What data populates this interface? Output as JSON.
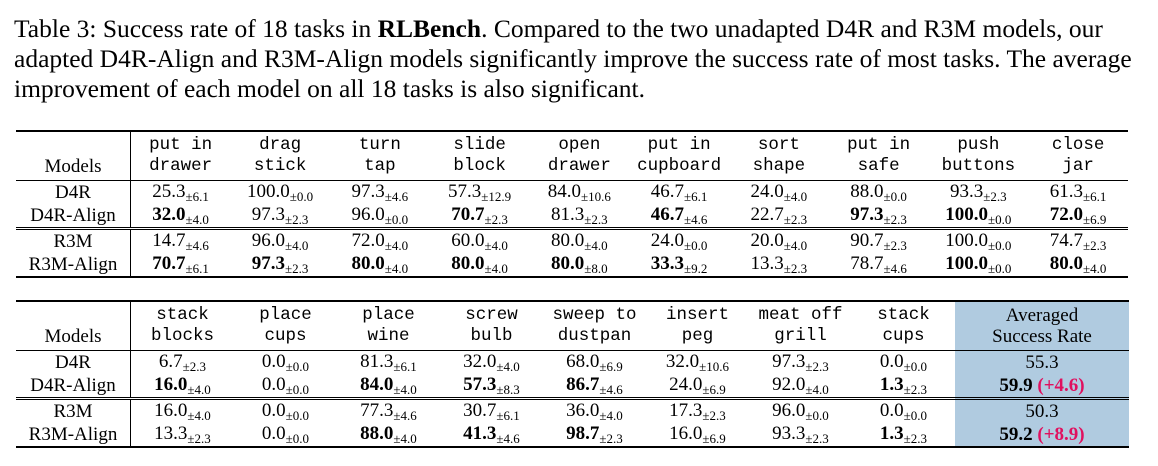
{
  "caption": {
    "prefix": "Table 3:  Success rate of 18 tasks in ",
    "bold": "RLBench",
    "rest": ".  Compared to the two unadapted D4R and R3M models, our adapted D4R-Align and R3M-Align models significantly improve the success rate of most tasks. The average improvement of each model on all 18 tasks is also significant."
  },
  "table1": {
    "models_label": "Models",
    "headers": [
      [
        "put in",
        "drawer"
      ],
      [
        "drag",
        "stick"
      ],
      [
        "turn",
        "tap"
      ],
      [
        "slide",
        "block"
      ],
      [
        "open",
        "drawer"
      ],
      [
        "put in",
        "cupboard"
      ],
      [
        "sort",
        "shape"
      ],
      [
        "put in",
        "safe"
      ],
      [
        "push",
        "buttons"
      ],
      [
        "close",
        "jar"
      ]
    ],
    "groups": [
      {
        "rows": [
          {
            "model": "D4R",
            "cells": [
              {
                "v": "25.3",
                "sd": "±6.1"
              },
              {
                "v": "100.0",
                "sd": "±0.0"
              },
              {
                "v": "97.3",
                "sd": "±4.6"
              },
              {
                "v": "57.3",
                "sd": "±12.9"
              },
              {
                "v": "84.0",
                "sd": "±10.6"
              },
              {
                "v": "46.7",
                "sd": "±6.1"
              },
              {
                "v": "24.0",
                "sd": "±4.0"
              },
              {
                "v": "88.0",
                "sd": "±0.0"
              },
              {
                "v": "93.3",
                "sd": "±2.3"
              },
              {
                "v": "61.3",
                "sd": "±6.1"
              }
            ]
          },
          {
            "model": "D4R-Align",
            "cells": [
              {
                "v": "32.0",
                "sd": "±4.0",
                "bold": true
              },
              {
                "v": "97.3",
                "sd": "±2.3"
              },
              {
                "v": "96.0",
                "sd": "±0.0"
              },
              {
                "v": "70.7",
                "sd": "±2.3",
                "bold": true
              },
              {
                "v": "81.3",
                "sd": "±2.3"
              },
              {
                "v": "46.7",
                "sd": "±4.6",
                "bold": true
              },
              {
                "v": "22.7",
                "sd": "±2.3"
              },
              {
                "v": "97.3",
                "sd": "±2.3",
                "bold": true
              },
              {
                "v": "100.0",
                "sd": "±0.0",
                "bold": true
              },
              {
                "v": "72.0",
                "sd": "±6.9",
                "bold": true
              }
            ]
          }
        ]
      },
      {
        "rows": [
          {
            "model": "R3M",
            "cells": [
              {
                "v": "14.7",
                "sd": "±4.6"
              },
              {
                "v": "96.0",
                "sd": "±4.0"
              },
              {
                "v": "72.0",
                "sd": "±4.0"
              },
              {
                "v": "60.0",
                "sd": "±4.0"
              },
              {
                "v": "80.0",
                "sd": "±4.0"
              },
              {
                "v": "24.0",
                "sd": "±0.0"
              },
              {
                "v": "20.0",
                "sd": "±4.0"
              },
              {
                "v": "90.7",
                "sd": "±2.3"
              },
              {
                "v": "100.0",
                "sd": "±0.0"
              },
              {
                "v": "74.7",
                "sd": "±2.3"
              }
            ]
          },
          {
            "model": "R3M-Align",
            "cells": [
              {
                "v": "70.7",
                "sd": "±6.1",
                "bold": true
              },
              {
                "v": "97.3",
                "sd": "±2.3",
                "bold": true
              },
              {
                "v": "80.0",
                "sd": "±4.0",
                "bold": true
              },
              {
                "v": "80.0",
                "sd": "±4.0",
                "bold": true
              },
              {
                "v": "80.0",
                "sd": "±8.0",
                "bold": true
              },
              {
                "v": "33.3",
                "sd": "±9.2",
                "bold": true
              },
              {
                "v": "13.3",
                "sd": "±2.3"
              },
              {
                "v": "78.7",
                "sd": "±4.6"
              },
              {
                "v": "100.0",
                "sd": "±0.0",
                "bold": true
              },
              {
                "v": "80.0",
                "sd": "±4.0",
                "bold": true
              }
            ]
          }
        ]
      }
    ]
  },
  "table2": {
    "models_label": "Models",
    "headers": [
      [
        "stack",
        "blocks"
      ],
      [
        "place",
        "cups"
      ],
      [
        "place",
        "wine"
      ],
      [
        "screw",
        "bulb"
      ],
      [
        "sweep to",
        "dustpan"
      ],
      [
        "insert",
        "peg"
      ],
      [
        "meat off",
        "grill"
      ],
      [
        "stack",
        "cups"
      ]
    ],
    "avg_header": [
      "Averaged",
      "Success Rate"
    ],
    "highlight_color": "#b0cbe0",
    "improvement_color": "#e0105e",
    "groups": [
      {
        "rows": [
          {
            "model": "D4R",
            "cells": [
              {
                "v": "6.7",
                "sd": "±2.3"
              },
              {
                "v": "0.0",
                "sd": "±0.0"
              },
              {
                "v": "81.3",
                "sd": "±6.1"
              },
              {
                "v": "32.0",
                "sd": "±4.0"
              },
              {
                "v": "68.0",
                "sd": "±6.9"
              },
              {
                "v": "32.0",
                "sd": "±10.6"
              },
              {
                "v": "97.3",
                "sd": "±2.3"
              },
              {
                "v": "0.0",
                "sd": "±0.0"
              }
            ],
            "avg": {
              "v": "55.3",
              "imp": ""
            }
          },
          {
            "model": "D4R-Align",
            "cells": [
              {
                "v": "16.0",
                "sd": "±4.0",
                "bold": true
              },
              {
                "v": "0.0",
                "sd": "±0.0"
              },
              {
                "v": "84.0",
                "sd": "±4.0",
                "bold": true
              },
              {
                "v": "57.3",
                "sd": "±8.3",
                "bold": true
              },
              {
                "v": "86.7",
                "sd": "±4.6",
                "bold": true
              },
              {
                "v": "24.0",
                "sd": "±6.9"
              },
              {
                "v": "92.0",
                "sd": "±4.0"
              },
              {
                "v": "1.3",
                "sd": "±2.3",
                "bold": true
              }
            ],
            "avg": {
              "v": "59.9",
              "imp": "(+4.6)",
              "bold": true
            }
          }
        ]
      },
      {
        "rows": [
          {
            "model": "R3M",
            "cells": [
              {
                "v": "16.0",
                "sd": "±4.0"
              },
              {
                "v": "0.0",
                "sd": "±0.0"
              },
              {
                "v": "77.3",
                "sd": "±4.6"
              },
              {
                "v": "30.7",
                "sd": "±6.1"
              },
              {
                "v": "36.0",
                "sd": "±4.0"
              },
              {
                "v": "17.3",
                "sd": "±2.3"
              },
              {
                "v": "96.0",
                "sd": "±0.0"
              },
              {
                "v": "0.0",
                "sd": "±0.0"
              }
            ],
            "avg": {
              "v": "50.3",
              "imp": ""
            }
          },
          {
            "model": "R3M-Align",
            "cells": [
              {
                "v": "13.3",
                "sd": "±2.3"
              },
              {
                "v": "0.0",
                "sd": "±0.0"
              },
              {
                "v": "88.0",
                "sd": "±4.0",
                "bold": true
              },
              {
                "v": "41.3",
                "sd": "±4.6",
                "bold": true
              },
              {
                "v": "98.7",
                "sd": "±2.3",
                "bold": true
              },
              {
                "v": "16.0",
                "sd": "±6.9"
              },
              {
                "v": "93.3",
                "sd": "±2.3"
              },
              {
                "v": "1.3",
                "sd": "±2.3",
                "bold": true
              }
            ],
            "avg": {
              "v": "59.2",
              "imp": "(+8.9)",
              "bold": true
            }
          }
        ]
      }
    ]
  }
}
